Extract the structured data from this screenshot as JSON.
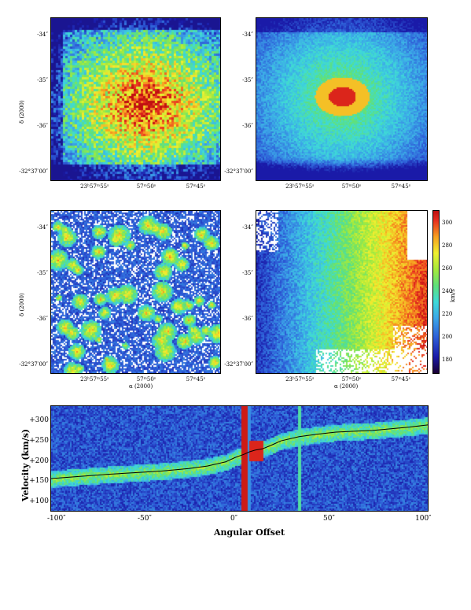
{
  "panels": {
    "dec_ticks": [
      "-34″",
      "-35″",
      "-36″",
      "-32°37′00″"
    ],
    "ra_ticks": [
      "23ʰ57ᵐ55ˢ",
      "57ᵐ50ˢ",
      "57ᵐ45ˢ"
    ],
    "dec_label": "δ (2000)",
    "ra_label": "α (2000)"
  },
  "colorbar": {
    "ticks": [
      "300",
      "280",
      "260",
      "240",
      "220",
      "200",
      "180"
    ],
    "label": "km/s"
  },
  "pv": {
    "ylabel": "Velocity (km/s)",
    "xlabel": "Angular Offset",
    "yticks": [
      "+300",
      "+250",
      "+200",
      "+150",
      "+100"
    ],
    "xticks": [
      "-100″",
      "-50″",
      "0″",
      "50″",
      "100″"
    ]
  },
  "chart_data": {
    "type": "line",
    "xlabel": "Angular Offset",
    "ylabel": "Velocity (km/s)",
    "xlim": [
      -105,
      100
    ],
    "ylim": [
      95,
      345
    ],
    "series": [
      {
        "x": [
          -105,
          -90,
          -75,
          -60,
          -45,
          -30,
          -20,
          -10,
          -5,
          0,
          3,
          6,
          10,
          15,
          20,
          30,
          40,
          50,
          60,
          70,
          80,
          90,
          100
        ],
        "y": [
          172,
          177,
          182,
          186,
          190,
          196,
          202,
          212,
          222,
          230,
          236,
          240,
          243,
          252,
          262,
          272,
          278,
          283,
          285,
          287,
          291,
          295,
          300
        ]
      }
    ]
  }
}
